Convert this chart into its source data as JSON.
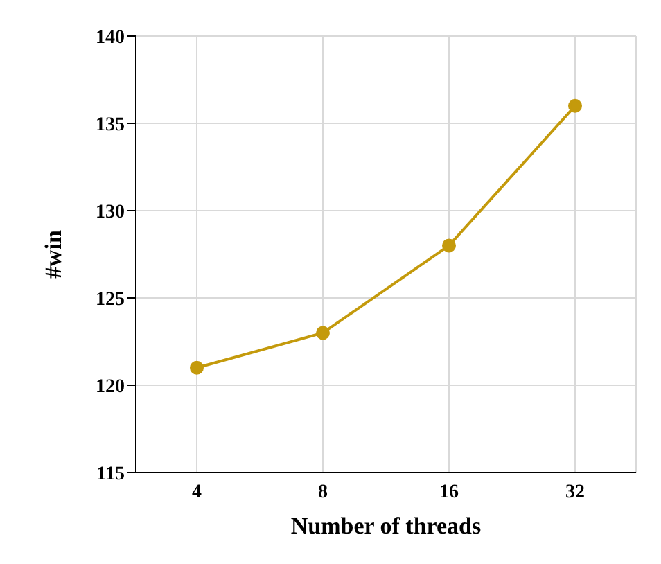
{
  "chart_data": {
    "type": "line",
    "xlabel": "Number of threads",
    "ylabel": "#win",
    "categories": [
      "4",
      "8",
      "16",
      "32"
    ],
    "series": [
      {
        "color": "#c49a0c",
        "values": [
          121,
          123,
          128,
          136
        ]
      }
    ],
    "ylim": [
      115,
      140
    ],
    "yticks": [
      115,
      120,
      125,
      130,
      135,
      140
    ],
    "grid": true,
    "marker": "circle",
    "line_style": "solid",
    "legend": false
  }
}
